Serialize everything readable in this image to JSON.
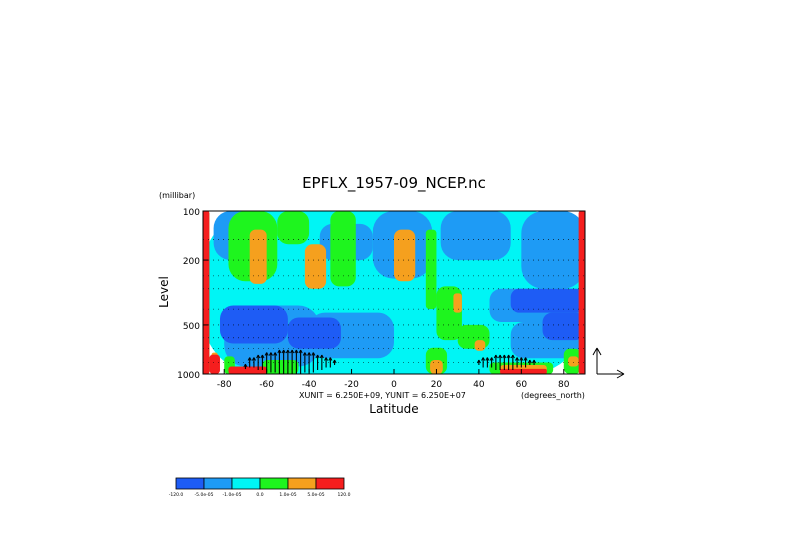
{
  "chart_data": {
    "type": "heatmap",
    "title": "EPFLX_1957-09_NCEP.nc",
    "xlabel": "Latitude",
    "ylabel": "Level",
    "y_units": "(millibar)",
    "x_units": "(degrees_north)",
    "unit_note": "XUNIT = 6.250E+09, YUNIT = 6.250E+07",
    "xlim": [
      -90,
      90
    ],
    "ylim": [
      1000,
      100
    ],
    "y_scale": "log",
    "grid": true,
    "x_ticks": [
      -80,
      -60,
      -40,
      -20,
      0,
      20,
      40,
      60,
      80
    ],
    "x_tick_labels": [
      "-80",
      "-60",
      "-40",
      "-20",
      "0",
      "20",
      "40",
      "60",
      "80"
    ],
    "y_ticks": [
      100,
      200,
      500,
      1000
    ],
    "y_tick_labels": [
      "100",
      "200",
      "500",
      "1000"
    ],
    "colorbar": {
      "levels": [
        -120.0,
        -5e-05,
        -1e-05,
        0.0,
        1e-05,
        5e-05,
        120.0
      ],
      "tick_labels": [
        "-120.0",
        "-5.0e-05",
        "-1.0e-05",
        "0.0",
        "1.0e-05",
        "5.0e-05",
        "120.0"
      ],
      "colors": [
        "#1e5cf5",
        "#1e9bf5",
        "#00f5f5",
        "#1ef51e",
        "#f5a01e",
        "#f51e1e"
      ]
    },
    "regions": [
      {
        "cls": 2,
        "lat": [
          -90,
          90
        ],
        "p": [
          100,
          1000
        ]
      },
      {
        "cls": 1,
        "lat": [
          -80,
          -35
        ],
        "p": [
          380,
          900
        ]
      },
      {
        "cls": 1,
        "lat": [
          -40,
          0
        ],
        "p": [
          420,
          800
        ]
      },
      {
        "cls": 1,
        "lat": [
          -85,
          -60
        ],
        "p": [
          100,
          200
        ]
      },
      {
        "cls": 1,
        "lat": [
          -10,
          18
        ],
        "p": [
          100,
          260
        ]
      },
      {
        "cls": 1,
        "lat": [
          22,
          55
        ],
        "p": [
          100,
          200
        ]
      },
      {
        "cls": 1,
        "lat": [
          60,
          90
        ],
        "p": [
          100,
          300
        ]
      },
      {
        "cls": 1,
        "lat": [
          45,
          90
        ],
        "p": [
          300,
          480
        ]
      },
      {
        "cls": 1,
        "lat": [
          55,
          90
        ],
        "p": [
          480,
          800
        ]
      },
      {
        "cls": 1,
        "lat": [
          -35,
          -10
        ],
        "p": [
          120,
          200
        ]
      },
      {
        "cls": 0,
        "lat": [
          -82,
          -50
        ],
        "p": [
          380,
          650
        ]
      },
      {
        "cls": 0,
        "lat": [
          -50,
          -25
        ],
        "p": [
          450,
          700
        ]
      },
      {
        "cls": 0,
        "lat": [
          55,
          90
        ],
        "p": [
          300,
          420
        ]
      },
      {
        "cls": 0,
        "lat": [
          70,
          90
        ],
        "p": [
          420,
          620
        ]
      },
      {
        "cls": 3,
        "lat": [
          -78,
          -55
        ],
        "p": [
          100,
          270
        ]
      },
      {
        "cls": 3,
        "lat": [
          -55,
          -40
        ],
        "p": [
          100,
          160
        ]
      },
      {
        "cls": 3,
        "lat": [
          -30,
          -18
        ],
        "p": [
          100,
          290
        ]
      },
      {
        "cls": 3,
        "lat": [
          15,
          20
        ],
        "p": [
          130,
          400
        ]
      },
      {
        "cls": 3,
        "lat": [
          20,
          32
        ],
        "p": [
          290,
          620
        ]
      },
      {
        "cls": 3,
        "lat": [
          30,
          45
        ],
        "p": [
          500,
          700
        ]
      },
      {
        "cls": 3,
        "lat": [
          15,
          25
        ],
        "p": [
          690,
          1000
        ]
      },
      {
        "cls": 3,
        "lat": [
          -62,
          -45
        ],
        "p": [
          820,
          1000
        ]
      },
      {
        "cls": 3,
        "lat": [
          -80,
          -75
        ],
        "p": [
          780,
          1000
        ]
      },
      {
        "cls": 3,
        "lat": [
          45,
          75
        ],
        "p": [
          850,
          1000
        ]
      },
      {
        "cls": 3,
        "lat": [
          80,
          88
        ],
        "p": [
          700,
          1000
        ]
      },
      {
        "cls": 3,
        "lat": [
          -90,
          -87
        ],
        "p": [
          100,
          1000
        ]
      },
      {
        "cls": 4,
        "lat": [
          -68,
          -60
        ],
        "p": [
          130,
          280
        ]
      },
      {
        "cls": 4,
        "lat": [
          -42,
          -32
        ],
        "p": [
          160,
          300
        ]
      },
      {
        "cls": 4,
        "lat": [
          0,
          10
        ],
        "p": [
          130,
          270
        ]
      },
      {
        "cls": 4,
        "lat": [
          28,
          32
        ],
        "p": [
          320,
          420
        ]
      },
      {
        "cls": 4,
        "lat": [
          38,
          43
        ],
        "p": [
          620,
          720
        ]
      },
      {
        "cls": 4,
        "lat": [
          -86,
          -83
        ],
        "p": [
          740,
          1000
        ]
      },
      {
        "cls": 4,
        "lat": [
          17,
          23
        ],
        "p": [
          820,
          1000
        ]
      },
      {
        "cls": 4,
        "lat": [
          50,
          72
        ],
        "p": [
          880,
          1000
        ]
      },
      {
        "cls": 4,
        "lat": [
          82,
          87
        ],
        "p": [
          780,
          900
        ]
      },
      {
        "cls": 5,
        "lat": [
          -90,
          -87
        ],
        "p": [
          100,
          1000
        ]
      },
      {
        "cls": 5,
        "lat": [
          87,
          90
        ],
        "p": [
          100,
          1000
        ]
      },
      {
        "cls": 5,
        "lat": [
          -87,
          -82
        ],
        "p": [
          760,
          1000
        ]
      },
      {
        "cls": 5,
        "lat": [
          -78,
          -60
        ],
        "p": [
          900,
          1000
        ]
      },
      {
        "cls": 5,
        "lat": [
          50,
          72
        ],
        "p": [
          930,
          1000
        ]
      }
    ],
    "arrows": [
      {
        "lat": -70,
        "p": 900,
        "u": 0,
        "v": 1
      },
      {
        "lat": -68,
        "p": 850,
        "u": 0,
        "v": 2
      },
      {
        "lat": -66,
        "p": 850,
        "u": 0,
        "v": 2
      },
      {
        "lat": -64,
        "p": 850,
        "u": 0,
        "v": 3
      },
      {
        "lat": -62,
        "p": 850,
        "u": 0,
        "v": 3
      },
      {
        "lat": -60,
        "p": 850,
        "u": 0,
        "v": 4
      },
      {
        "lat": -58,
        "p": 850,
        "u": 0,
        "v": 4
      },
      {
        "lat": -56,
        "p": 850,
        "u": 0,
        "v": 4
      },
      {
        "lat": -54,
        "p": 850,
        "u": 0,
        "v": 5
      },
      {
        "lat": -52,
        "p": 850,
        "u": 0,
        "v": 5
      },
      {
        "lat": -50,
        "p": 850,
        "u": 0,
        "v": 5
      },
      {
        "lat": -48,
        "p": 850,
        "u": 0,
        "v": 5
      },
      {
        "lat": -46,
        "p": 850,
        "u": 0,
        "v": 5
      },
      {
        "lat": -44,
        "p": 850,
        "u": 0,
        "v": 5
      },
      {
        "lat": -42,
        "p": 850,
        "u": 0,
        "v": 4
      },
      {
        "lat": -40,
        "p": 850,
        "u": 0,
        "v": 4
      },
      {
        "lat": -38,
        "p": 850,
        "u": 0,
        "v": 4
      },
      {
        "lat": -36,
        "p": 850,
        "u": 0,
        "v": 3
      },
      {
        "lat": -34,
        "p": 850,
        "u": 0,
        "v": 3
      },
      {
        "lat": -32,
        "p": 850,
        "u": 0,
        "v": 2
      },
      {
        "lat": -30,
        "p": 850,
        "u": 0,
        "v": 2
      },
      {
        "lat": -28,
        "p": 850,
        "u": 0,
        "v": 1
      },
      {
        "lat": 40,
        "p": 850,
        "u": 0,
        "v": 1
      },
      {
        "lat": 42,
        "p": 850,
        "u": 0,
        "v": 2
      },
      {
        "lat": 44,
        "p": 850,
        "u": 0,
        "v": 2
      },
      {
        "lat": 46,
        "p": 850,
        "u": 0,
        "v": 2
      },
      {
        "lat": 48,
        "p": 850,
        "u": 0,
        "v": 3
      },
      {
        "lat": 50,
        "p": 850,
        "u": 0,
        "v": 3
      },
      {
        "lat": 52,
        "p": 850,
        "u": 0,
        "v": 3
      },
      {
        "lat": 54,
        "p": 850,
        "u": 0,
        "v": 3
      },
      {
        "lat": 56,
        "p": 850,
        "u": 0,
        "v": 3
      },
      {
        "lat": 58,
        "p": 850,
        "u": 0,
        "v": 2
      },
      {
        "lat": 60,
        "p": 850,
        "u": 0,
        "v": 2
      },
      {
        "lat": 62,
        "p": 850,
        "u": 0,
        "v": 2
      },
      {
        "lat": 64,
        "p": 850,
        "u": 0,
        "v": 1
      },
      {
        "lat": 66,
        "p": 850,
        "u": 0,
        "v": 1
      }
    ]
  }
}
